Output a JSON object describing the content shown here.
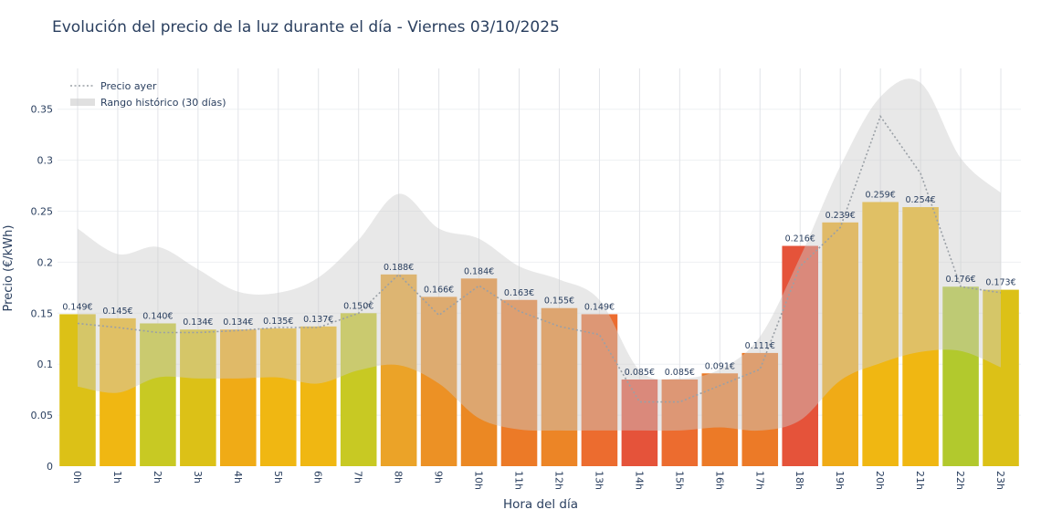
{
  "chart_data": {
    "type": "bar",
    "title": "Evolución del precio de la luz durante el día - Viernes 03/10/2025",
    "xlabel": "Hora del día",
    "ylabel": "Precio (€/kWh)",
    "categories": [
      "0h",
      "1h",
      "2h",
      "3h",
      "4h",
      "5h",
      "6h",
      "7h",
      "8h",
      "9h",
      "10h",
      "11h",
      "12h",
      "13h",
      "14h",
      "15h",
      "16h",
      "17h",
      "18h",
      "19h",
      "20h",
      "21h",
      "22h",
      "23h"
    ],
    "series": [
      {
        "type": "bar",
        "values": [
          0.149,
          0.145,
          0.14,
          0.134,
          0.134,
          0.135,
          0.137,
          0.15,
          0.188,
          0.166,
          0.184,
          0.163,
          0.155,
          0.149,
          0.085,
          0.085,
          0.091,
          0.111,
          0.216,
          0.239,
          0.259,
          0.254,
          0.176,
          0.173
        ],
        "labels": [
          "0.149€",
          "0.145€",
          "0.140€",
          "0.134€",
          "0.134€",
          "0.135€",
          "0.137€",
          "0.150€",
          "0.188€",
          "0.166€",
          "0.184€",
          "0.163€",
          "0.155€",
          "0.149€",
          "0.085€",
          "0.085€",
          "0.091€",
          "0.111€",
          "0.216€",
          "0.239€",
          "0.259€",
          "0.254€",
          "0.176€",
          "0.173€"
        ],
        "colors": [
          "#dcc117",
          "#f0b712",
          "#c8c923",
          "#dcc117",
          "#f0ab16",
          "#f0b712",
          "#f0b712",
          "#c8c923",
          "#eba328",
          "#ec9125",
          "#eb8823",
          "#ec7a27",
          "#ec8526",
          "#ec6c2f",
          "#e5533a",
          "#ec6c2f",
          "#ec7a27",
          "#ec7a27",
          "#e5533a",
          "#f0ab16",
          "#f0b712",
          "#f0b712",
          "#b2c92d",
          "#dcc117"
        ]
      },
      {
        "name": "Precio ayer",
        "type": "line",
        "style": "dotted",
        "color": "#9aa0a6",
        "values": [
          0.14,
          0.136,
          0.131,
          0.131,
          0.133,
          0.136,
          0.136,
          0.15,
          0.188,
          0.148,
          0.177,
          0.152,
          0.137,
          0.129,
          0.063,
          0.063,
          0.079,
          0.095,
          0.196,
          0.234,
          0.343,
          0.287,
          0.176,
          0.17
        ]
      },
      {
        "name": "Rango histórico (30 días)",
        "type": "band",
        "color": "#cccccc",
        "upper": [
          0.233,
          0.208,
          0.215,
          0.193,
          0.171,
          0.17,
          0.185,
          0.222,
          0.267,
          0.233,
          0.223,
          0.196,
          0.183,
          0.163,
          0.094,
          0.086,
          0.095,
          0.127,
          0.205,
          0.294,
          0.362,
          0.376,
          0.302,
          0.268
        ],
        "lower": [
          0.078,
          0.072,
          0.087,
          0.086,
          0.086,
          0.087,
          0.081,
          0.094,
          0.099,
          0.081,
          0.047,
          0.036,
          0.035,
          0.035,
          0.035,
          0.035,
          0.038,
          0.035,
          0.045,
          0.084,
          0.101,
          0.112,
          0.113,
          0.097
        ]
      }
    ],
    "ylim": [
      0,
      0.39
    ],
    "yticks": [
      0,
      0.05,
      0.1,
      0.15,
      0.2,
      0.25,
      0.3,
      0.35
    ],
    "ytick_labels": [
      "0",
      "0.05",
      "0.1",
      "0.15",
      "0.2",
      "0.25",
      "0.3",
      "0.35"
    ],
    "grid": true,
    "legend_position": "top-left"
  }
}
